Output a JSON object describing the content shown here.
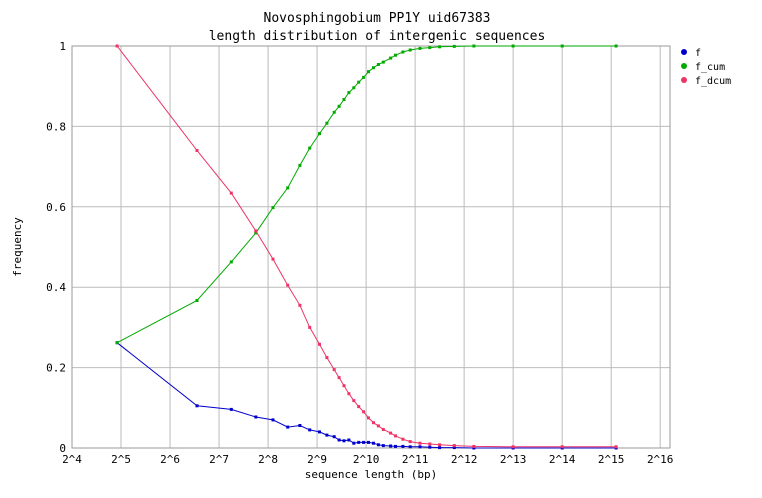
{
  "chart_data": {
    "type": "line",
    "title": "Novosphingobium PP1Y uid67383",
    "subtitle": "length distribution of intergenic sequences",
    "xlabel": "sequence length (bp)",
    "ylabel": "frequency",
    "x_scale": "log2",
    "xlim_log2": [
      4,
      16.2
    ],
    "ylim": [
      0,
      1
    ],
    "grid": true,
    "legend_position": "right",
    "x_ticks": [
      {
        "value": 4,
        "label": "2^4"
      },
      {
        "value": 5,
        "label": "2^5"
      },
      {
        "value": 6,
        "label": "2^6"
      },
      {
        "value": 7,
        "label": "2^7"
      },
      {
        "value": 8,
        "label": "2^8"
      },
      {
        "value": 9,
        "label": "2^9"
      },
      {
        "value": 10,
        "label": "2^10"
      },
      {
        "value": 11,
        "label": "2^11"
      },
      {
        "value": 12,
        "label": "2^12"
      },
      {
        "value": 13,
        "label": "2^13"
      },
      {
        "value": 14,
        "label": "2^14"
      },
      {
        "value": 15,
        "label": "2^15"
      },
      {
        "value": 16,
        "label": "2^16"
      }
    ],
    "y_ticks": [
      {
        "value": 0,
        "label": "0"
      },
      {
        "value": 0.2,
        "label": "0.2"
      },
      {
        "value": 0.4,
        "label": "0.4"
      },
      {
        "value": 0.6,
        "label": "0.6"
      },
      {
        "value": 0.8,
        "label": "0.8"
      },
      {
        "value": 1,
        "label": "1"
      }
    ],
    "series": [
      {
        "name": "f",
        "color": "#0000cc",
        "x_log2": [
          4.92,
          6.55,
          7.25,
          7.75,
          8.1,
          8.4,
          8.65,
          8.85,
          9.05,
          9.2,
          9.35,
          9.45,
          9.55,
          9.65,
          9.75,
          9.85,
          9.95,
          10.05,
          10.15,
          10.25,
          10.35,
          10.5,
          10.6,
          10.75,
          10.9,
          11.1,
          11.3,
          11.5,
          11.8,
          12.2,
          13.0,
          14.0,
          15.1
        ],
        "values": [
          0.262,
          0.105,
          0.096,
          0.077,
          0.07,
          0.052,
          0.056,
          0.045,
          0.04,
          0.032,
          0.028,
          0.02,
          0.018,
          0.02,
          0.012,
          0.014,
          0.014,
          0.014,
          0.012,
          0.008,
          0.006,
          0.005,
          0.004,
          0.004,
          0.003,
          0.003,
          0.002,
          0.001,
          0.001,
          0.0,
          0.0,
          0.0,
          0.0
        ]
      },
      {
        "name": "f_cum",
        "color": "#00aa00",
        "x_log2": [
          4.92,
          6.55,
          7.25,
          7.75,
          8.1,
          8.4,
          8.65,
          8.85,
          9.05,
          9.2,
          9.35,
          9.45,
          9.55,
          9.65,
          9.75,
          9.85,
          9.95,
          10.05,
          10.15,
          10.25,
          10.35,
          10.5,
          10.6,
          10.75,
          10.9,
          11.1,
          11.3,
          11.5,
          11.8,
          12.2,
          13.0,
          14.0,
          15.1
        ],
        "values": [
          0.262,
          0.367,
          0.463,
          0.535,
          0.598,
          0.647,
          0.703,
          0.746,
          0.782,
          0.808,
          0.835,
          0.85,
          0.867,
          0.884,
          0.896,
          0.91,
          0.922,
          0.936,
          0.946,
          0.954,
          0.96,
          0.97,
          0.977,
          0.985,
          0.99,
          0.994,
          0.996,
          0.998,
          0.999,
          1.0,
          1.0,
          1.0,
          1.0
        ]
      },
      {
        "name": "f_dcum",
        "color": "#ee3366",
        "x_log2": [
          4.92,
          6.55,
          7.25,
          7.75,
          8.1,
          8.4,
          8.65,
          8.85,
          9.05,
          9.2,
          9.35,
          9.45,
          9.55,
          9.65,
          9.75,
          9.85,
          9.95,
          10.05,
          10.15,
          10.25,
          10.35,
          10.5,
          10.6,
          10.75,
          10.9,
          11.1,
          11.3,
          11.5,
          11.8,
          12.2,
          13.0,
          14.0,
          15.1
        ],
        "values": [
          1.0,
          0.74,
          0.634,
          0.54,
          0.47,
          0.405,
          0.355,
          0.3,
          0.258,
          0.225,
          0.195,
          0.175,
          0.155,
          0.135,
          0.118,
          0.103,
          0.09,
          0.075,
          0.063,
          0.055,
          0.046,
          0.037,
          0.03,
          0.022,
          0.016,
          0.012,
          0.01,
          0.008,
          0.006,
          0.004,
          0.003,
          0.003,
          0.003
        ]
      }
    ]
  }
}
